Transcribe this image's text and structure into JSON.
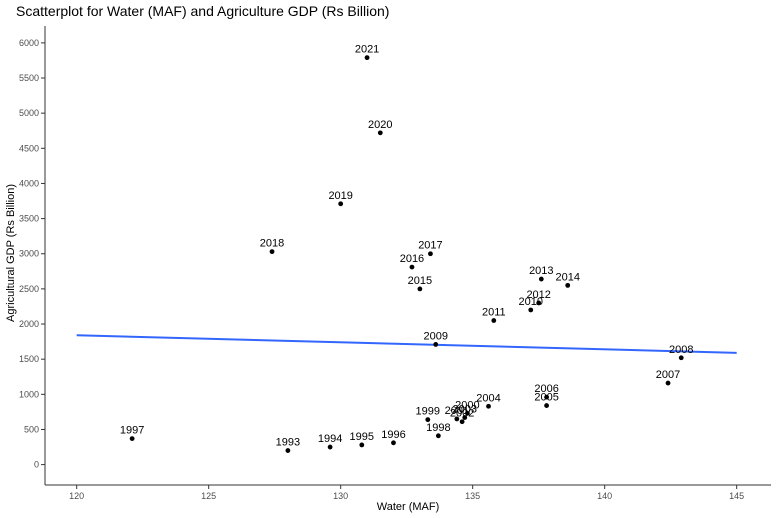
{
  "chart_data": {
    "type": "scatter",
    "title": "Scatterplot for Water (MAF) and Agriculture GDP (Rs Billion)",
    "xlabel": "Water (MAF)",
    "ylabel": "Agricultural GDP (Rs Billion)",
    "xlim": [
      118.8,
      146.3
    ],
    "ylim": [
      -290,
      6240
    ],
    "xticks": [
      120,
      125,
      130,
      135,
      140,
      145
    ],
    "yticks": [
      0,
      500,
      1000,
      1500,
      2000,
      2500,
      3000,
      3500,
      4000,
      4500,
      5000,
      5500,
      6000
    ],
    "grid": false,
    "points": [
      {
        "label": "2021",
        "x": 131.0,
        "y": 5790
      },
      {
        "label": "2020",
        "x": 131.5,
        "y": 4720
      },
      {
        "label": "2019",
        "x": 130.0,
        "y": 3710
      },
      {
        "label": "2018",
        "x": 127.4,
        "y": 3030
      },
      {
        "label": "2017",
        "x": 133.4,
        "y": 3000
      },
      {
        "label": "2016",
        "x": 132.7,
        "y": 2810
      },
      {
        "label": "2015",
        "x": 133.0,
        "y": 2500
      },
      {
        "label": "2014",
        "x": 138.6,
        "y": 2550
      },
      {
        "label": "2013",
        "x": 137.6,
        "y": 2640
      },
      {
        "label": "2012",
        "x": 137.5,
        "y": 2300
      },
      {
        "label": "2010",
        "x": 137.2,
        "y": 2200
      },
      {
        "label": "2011",
        "x": 135.8,
        "y": 2050
      },
      {
        "label": "2009",
        "x": 133.6,
        "y": 1710
      },
      {
        "label": "2008",
        "x": 142.9,
        "y": 1520
      },
      {
        "label": "2007",
        "x": 142.4,
        "y": 1160
      },
      {
        "label": "2006",
        "x": 137.8,
        "y": 960
      },
      {
        "label": "2005",
        "x": 137.8,
        "y": 840
      },
      {
        "label": "2004",
        "x": 135.6,
        "y": 830
      },
      {
        "label": "2003",
        "x": 134.7,
        "y": 670
      },
      {
        "label": "2002",
        "x": 134.6,
        "y": 610
      },
      {
        "label": "2001",
        "x": 134.4,
        "y": 650
      },
      {
        "label": "2000",
        "x": 134.8,
        "y": 730
      },
      {
        "label": "1999",
        "x": 133.3,
        "y": 640
      },
      {
        "label": "1998",
        "x": 133.7,
        "y": 410
      },
      {
        "label": "1997",
        "x": 122.1,
        "y": 370
      },
      {
        "label": "1996",
        "x": 132.0,
        "y": 310
      },
      {
        "label": "1995",
        "x": 130.8,
        "y": 280
      },
      {
        "label": "1994",
        "x": 129.6,
        "y": 250
      },
      {
        "label": "1993",
        "x": 128.0,
        "y": 200
      }
    ],
    "trend_line": {
      "x": [
        120,
        145
      ],
      "y": [
        1840,
        1590
      ]
    },
    "colors": {
      "point": "#000000",
      "trend": "#3366ff",
      "axis": "#333333",
      "tick_label": "#4d4d4d"
    }
  }
}
